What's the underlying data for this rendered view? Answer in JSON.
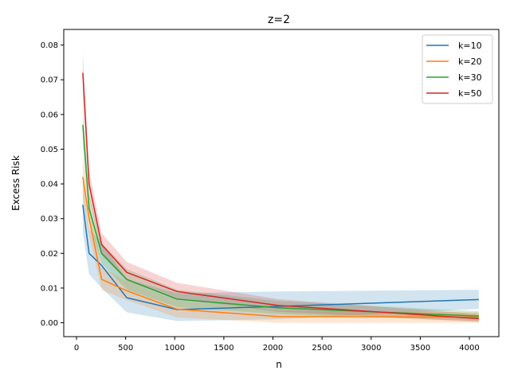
{
  "chart_data": {
    "type": "line",
    "title": "z=2",
    "xlabel": "n",
    "ylabel": "Excess Risk",
    "xlim": [
      -130,
      4300
    ],
    "ylim": [
      -0.004,
      0.0845
    ],
    "xticks": [
      0,
      500,
      1000,
      1500,
      2000,
      2500,
      3000,
      3500,
      4000
    ],
    "yticks": [
      0.0,
      0.01,
      0.02,
      0.03,
      0.04,
      0.05,
      0.06,
      0.07,
      0.08
    ],
    "ytick_labels": [
      "0.00",
      "0.01",
      "0.02",
      "0.03",
      "0.04",
      "0.05",
      "0.06",
      "0.07",
      "0.08"
    ],
    "legend_position": "top-right",
    "grid": false,
    "x": [
      64,
      128,
      256,
      512,
      1024,
      2048,
      4096
    ],
    "series": [
      {
        "name": "k=10",
        "color": "#1f77b4",
        "values": [
          0.034,
          0.02,
          0.0165,
          0.0072,
          0.0038,
          0.0047,
          0.0067
        ],
        "lower": [
          0.026,
          0.014,
          0.01,
          0.003,
          0.0005,
          0.001,
          0.004
        ],
        "upper": [
          0.041,
          0.027,
          0.023,
          0.0125,
          0.0085,
          0.009,
          0.0095
        ]
      },
      {
        "name": "k=20",
        "color": "#ff7f0e",
        "values": [
          0.042,
          0.03,
          0.0125,
          0.0092,
          0.0039,
          0.0018,
          0.0016
        ],
        "lower": [
          0.036,
          0.025,
          0.0095,
          0.0065,
          0.0015,
          0.0,
          0.0
        ],
        "upper": [
          0.048,
          0.035,
          0.016,
          0.012,
          0.0065,
          0.0035,
          0.003
        ]
      },
      {
        "name": "k=30",
        "color": "#2ca02c",
        "values": [
          0.057,
          0.033,
          0.02,
          0.0125,
          0.0068,
          0.0043,
          0.0019
        ],
        "lower": [
          0.051,
          0.029,
          0.017,
          0.0095,
          0.0045,
          0.0025,
          0.0005
        ],
        "upper": [
          0.063,
          0.037,
          0.023,
          0.0155,
          0.0095,
          0.0063,
          0.0033
        ]
      },
      {
        "name": "k=50",
        "color": "#d62728",
        "values": [
          0.072,
          0.04,
          0.0225,
          0.0145,
          0.009,
          0.005,
          0.0012
        ],
        "lower": [
          0.066,
          0.036,
          0.0195,
          0.012,
          0.0068,
          0.0032,
          0.0002
        ],
        "upper": [
          0.078,
          0.044,
          0.0258,
          0.0175,
          0.0115,
          0.0068,
          0.0025
        ]
      }
    ]
  }
}
